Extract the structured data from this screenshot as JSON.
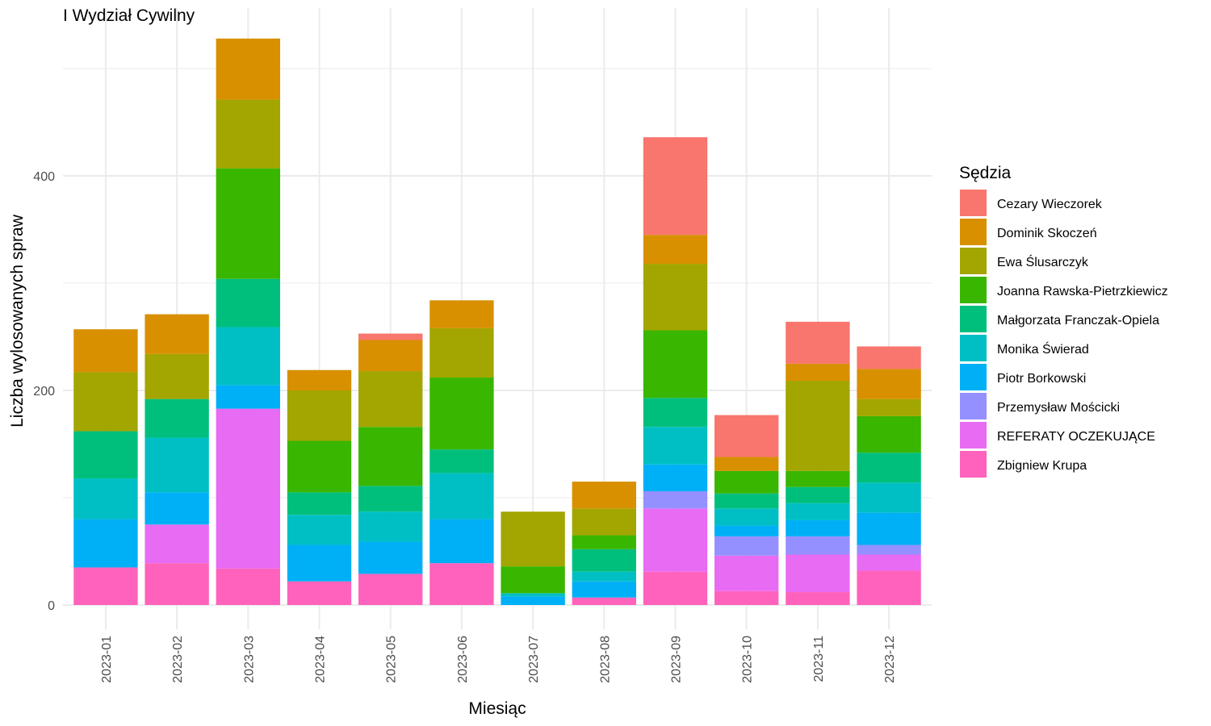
{
  "chart_data": {
    "type": "bar",
    "stacked": true,
    "title": "I Wydział Cywilny",
    "xlabel": "Miesiąc",
    "ylabel": "Liczba wylosowanych spraw",
    "ylim": [
      -20,
      550
    ],
    "yticks": [
      0,
      200,
      400
    ],
    "grid": true,
    "legend_title": "Sędzia",
    "legend_position": "right",
    "categories": [
      "2023-01",
      "2023-02",
      "2023-03",
      "2023-04",
      "2023-05",
      "2023-06",
      "2023-07",
      "2023-08",
      "2023-09",
      "2023-10",
      "2023-11",
      "2023-12"
    ],
    "series": [
      {
        "name": "Cezary Wieczorek",
        "color": "#F8766D",
        "values": [
          0,
          0,
          0,
          0,
          6,
          0,
          0,
          0,
          91,
          39,
          39,
          21
        ]
      },
      {
        "name": "Dominik Skoczeń",
        "color": "#D89000",
        "values": [
          40,
          37,
          57,
          19,
          29,
          26,
          0,
          25,
          27,
          13,
          16,
          28
        ]
      },
      {
        "name": "Ewa Ślusarczyk",
        "color": "#A3A500",
        "values": [
          55,
          42,
          64,
          47,
          52,
          46,
          51,
          25,
          62,
          0,
          84,
          16
        ]
      },
      {
        "name": "Joanna Rawska-Pietrzkiewicz",
        "color": "#39B600",
        "values": [
          0,
          0,
          103,
          48,
          55,
          67,
          25,
          13,
          63,
          21,
          15,
          34
        ]
      },
      {
        "name": "Małgorzata Franczak-Opiela",
        "color": "#00BF7D",
        "values": [
          44,
          36,
          45,
          21,
          24,
          22,
          0,
          21,
          27,
          14,
          15,
          28
        ]
      },
      {
        "name": "Monika Świerad",
        "color": "#00BFC4",
        "values": [
          38,
          51,
          54,
          28,
          28,
          43,
          3,
          9,
          35,
          16,
          16,
          28
        ]
      },
      {
        "name": "Piotr Borkowski",
        "color": "#00B0F6",
        "values": [
          45,
          30,
          22,
          34,
          30,
          41,
          8,
          15,
          25,
          10,
          15,
          30
        ]
      },
      {
        "name": "Przemysław Mościcki",
        "color": "#9590FF",
        "values": [
          0,
          0,
          0,
          0,
          0,
          0,
          0,
          0,
          16,
          18,
          17,
          9
        ]
      },
      {
        "name": "REFERATY OCZEKUJĄCE",
        "color": "#E76BF3",
        "values": [
          0,
          36,
          149,
          0,
          0,
          0,
          0,
          0,
          59,
          33,
          35,
          15
        ]
      },
      {
        "name": "Zbigniew Krupa",
        "color": "#FF62BC",
        "values": [
          35,
          39,
          34,
          22,
          29,
          39,
          0,
          7,
          31,
          13,
          12,
          32
        ]
      }
    ]
  }
}
